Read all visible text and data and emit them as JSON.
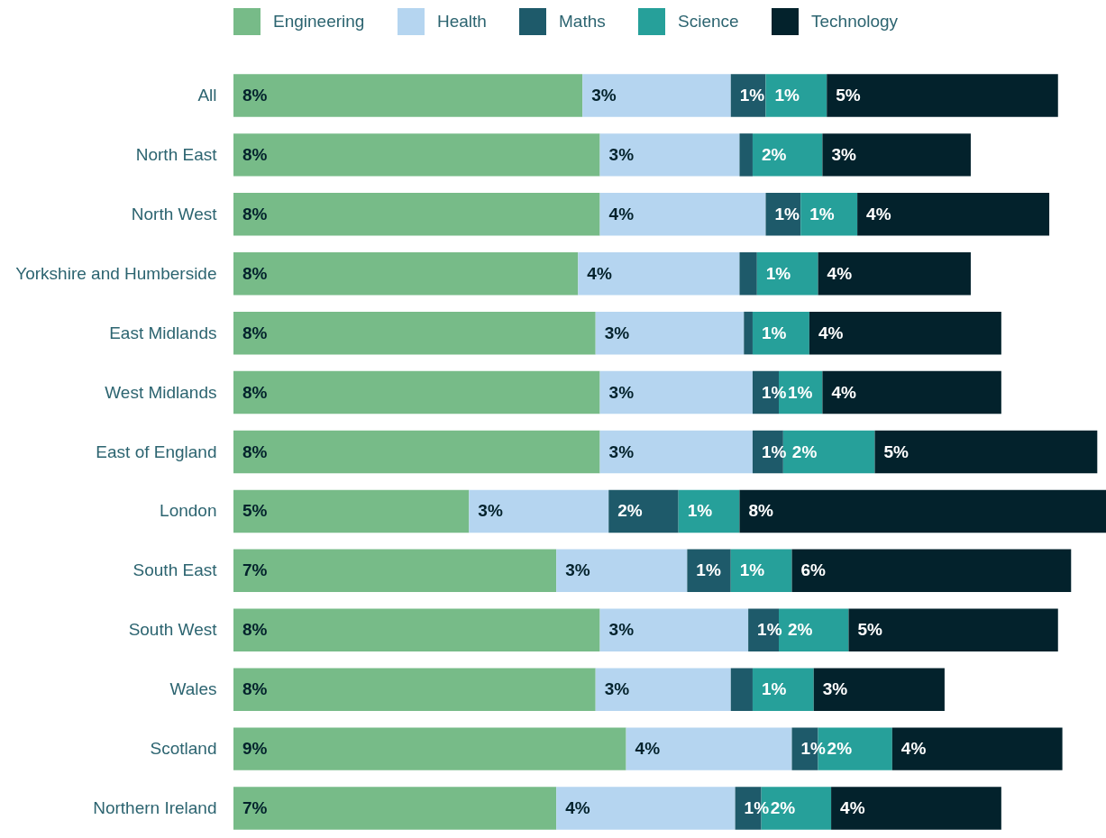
{
  "chart_data": {
    "type": "bar",
    "orientation": "horizontal",
    "stacked": true,
    "legend": "top",
    "categories": [
      "All",
      "North East",
      "North West",
      "Yorkshire and Humberside",
      "East Midlands",
      "West Midlands",
      "East of England",
      "London",
      "South East",
      "South West",
      "Wales",
      "Scotland",
      "Northern Ireland"
    ],
    "series": [
      {
        "name": "Engineering",
        "color": "#77bb88",
        "values": [
          8.0,
          8.4,
          8.4,
          7.9,
          8.3,
          8.4,
          8.4,
          5.4,
          7.4,
          8.4,
          8.3,
          9.0,
          7.4
        ],
        "value_labels": [
          "8%",
          "8%",
          "8%",
          "8%",
          "8%",
          "8%",
          "8%",
          "5%",
          "7%",
          "8%",
          "8%",
          "9%",
          "7%"
        ]
      },
      {
        "name": "Health",
        "color": "#b5d5f0",
        "values": [
          3.4,
          3.2,
          3.8,
          3.7,
          3.4,
          3.5,
          3.5,
          3.2,
          3.0,
          3.4,
          3.1,
          3.8,
          4.1
        ],
        "value_labels": [
          "3%",
          "3%",
          "4%",
          "4%",
          "3%",
          "3%",
          "3%",
          "3%",
          "3%",
          "3%",
          "3%",
          "4%",
          "4%"
        ]
      },
      {
        "name": "Maths",
        "color": "#1e5a6a",
        "values": [
          0.8,
          0.3,
          0.8,
          0.4,
          0.2,
          0.6,
          0.7,
          1.6,
          1.0,
          0.7,
          0.5,
          0.6,
          0.6
        ],
        "value_labels": [
          "1%",
          null,
          "1%",
          null,
          null,
          "1%",
          "1%",
          "2%",
          "1%",
          "1%",
          null,
          "1%",
          "1%"
        ]
      },
      {
        "name": "Science",
        "color": "#26a09a",
        "values": [
          1.4,
          1.6,
          1.3,
          1.4,
          1.3,
          1.0,
          2.1,
          1.4,
          1.4,
          1.6,
          1.4,
          1.7,
          1.6
        ],
        "value_labels": [
          "1%",
          "2%",
          "1%",
          "1%",
          "1%",
          "1%",
          "2%",
          "1%",
          "1%",
          "2%",
          "1%",
          "2%",
          "2%"
        ]
      },
      {
        "name": "Technology",
        "color": "#03222c",
        "values": [
          5.3,
          3.4,
          4.4,
          3.5,
          4.4,
          4.1,
          5.1,
          8.4,
          6.4,
          4.8,
          3.0,
          3.9,
          3.9
        ],
        "value_labels": [
          "5%",
          "3%",
          "4%",
          "4%",
          "4%",
          "4%",
          "5%",
          "8%",
          "6%",
          "5%",
          "3%",
          "4%",
          "4%"
        ]
      }
    ]
  }
}
